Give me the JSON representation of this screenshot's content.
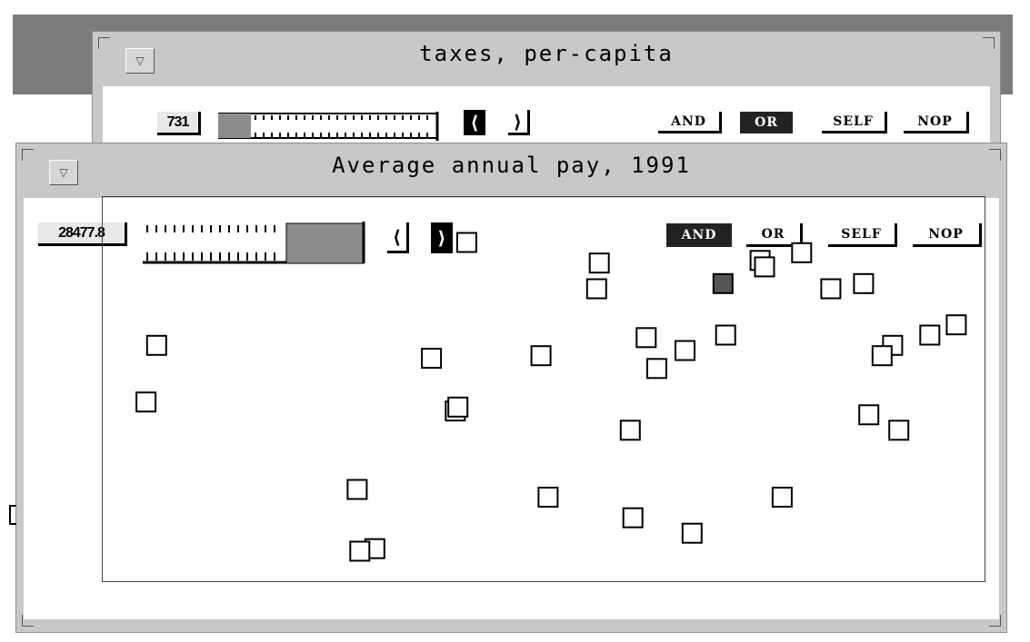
{
  "back_window": {
    "title": "taxes,  per-capita",
    "value": "731",
    "slider_fill": 0.15,
    "ops": {
      "and": "AND",
      "or": "OR",
      "self": "SELF",
      "nop": "NOP"
    },
    "active_op": "or"
  },
  "front_window": {
    "title": "Average  annual  pay,  1991",
    "value": "28477.8",
    "slider_range": [
      0.65,
      1.0
    ],
    "ops": {
      "and": "AND",
      "or": "OR",
      "self": "SELF",
      "nop": "NOP"
    },
    "active_op": "and"
  },
  "icons": {
    "menu": "down-triangle-icon",
    "left": "chevron-left-icon",
    "right": "chevron-right-icon"
  },
  "colors": {
    "desktop": "#7b7b7b",
    "window": "#c8c8c8",
    "selected_point": "#555555",
    "active_op": "#222222"
  },
  "chart_data": {
    "type": "scatter",
    "x": [
      50,
      400,
      403,
      560,
      563,
      703,
      745,
      750,
      792,
      825,
      862,
      62,
      373,
      497,
      616,
      660,
      628,
      706,
      895,
      883,
      937,
      967,
      868,
      902,
      598,
      505,
      770,
      601,
      668,
      289,
      309,
      292,
      413
    ],
    "y": [
      540,
      533,
      536,
      628,
      648,
      632,
      650,
      645,
      656,
      628,
      632,
      584,
      574,
      576,
      590,
      580,
      566,
      592,
      584,
      576,
      592,
      600,
      530,
      518,
      518,
      466,
      466,
      450,
      438,
      472,
      426,
      424,
      664
    ],
    "selected_index": 5
  }
}
